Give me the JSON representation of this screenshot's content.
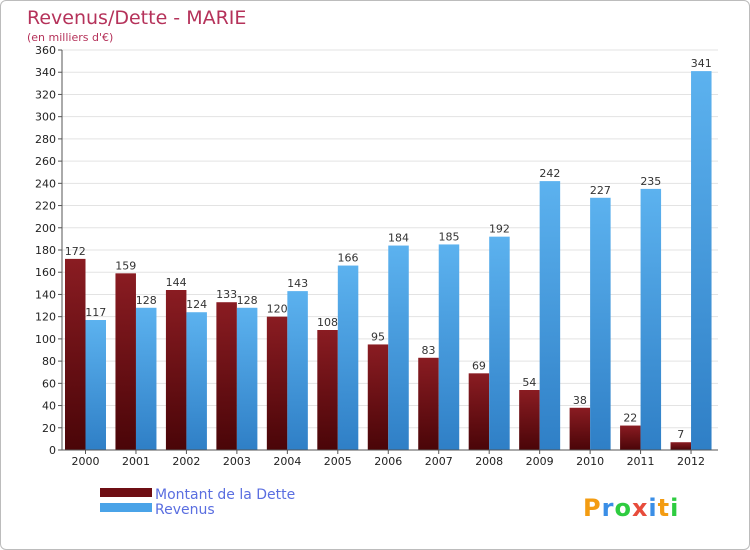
{
  "chart_data": {
    "type": "bar",
    "title": "Revenus/Dette - MARIE",
    "subtitle": "(en milliers d'€)",
    "categories": [
      "2000",
      "2001",
      "2002",
      "2003",
      "2004",
      "2005",
      "2006",
      "2007",
      "2008",
      "2009",
      "2010",
      "2011",
      "2012"
    ],
    "series": [
      {
        "name": "Montant de la Dette",
        "color": "#6e0e14",
        "values": [
          172,
          159,
          144,
          133,
          120,
          108,
          95,
          83,
          69,
          54,
          38,
          22,
          7
        ]
      },
      {
        "name": "Revenus",
        "color": "#4aa3e8",
        "values": [
          117,
          128,
          124,
          128,
          143,
          166,
          184,
          185,
          192,
          242,
          227,
          235,
          341
        ]
      }
    ],
    "ylim": [
      0,
      360
    ],
    "yticks": [
      0,
      20,
      40,
      60,
      80,
      100,
      120,
      140,
      160,
      180,
      200,
      220,
      240,
      260,
      280,
      300,
      320,
      340,
      360
    ],
    "grid": true,
    "legend_position": "bottom-left"
  },
  "logo": {
    "letters": [
      "P",
      "r",
      "o",
      "x",
      "i",
      "t",
      "i"
    ],
    "colors": [
      "#f39c12",
      "#3a8ee6",
      "#2ecc40",
      "#e74c3c",
      "#3a8ee6",
      "#f39c12",
      "#2ecc40"
    ]
  }
}
